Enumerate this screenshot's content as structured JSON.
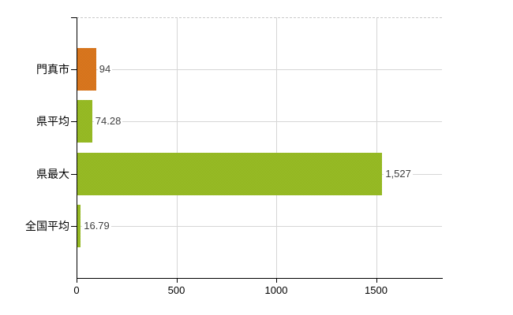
{
  "chart_data": {
    "type": "bar",
    "orientation": "horizontal",
    "categories": [
      "門真市",
      "県平均",
      "県最大",
      "全国平均"
    ],
    "values": [
      94,
      74.28,
      1527,
      16.79
    ],
    "value_labels": [
      "94",
      "74.28",
      "1,527",
      "16.79"
    ],
    "bar_colors": [
      "#e07a20",
      "#98c527",
      "#98c527",
      "#98c527"
    ],
    "x_ticks": [
      0,
      500,
      1000,
      1500
    ],
    "x_tick_labels": [
      "0",
      "500",
      "1000",
      "1500"
    ],
    "xlim": [
      0,
      1830
    ],
    "grid": true,
    "legend_position": "none"
  },
  "colors": {
    "background": "#ffffff",
    "axis": "#000000",
    "gridline": "#d6d6d6",
    "top_border_dashed": "#c9c9c9",
    "category_text": "#000000",
    "value_text": "#3f3f3f"
  }
}
